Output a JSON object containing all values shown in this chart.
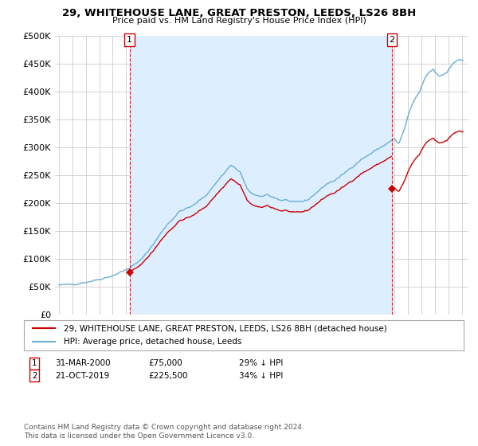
{
  "title": "29, WHITEHOUSE LANE, GREAT PRESTON, LEEDS, LS26 8BH",
  "subtitle": "Price paid vs. HM Land Registry's House Price Index (HPI)",
  "hpi_color": "#6baed6",
  "price_color": "#cc0000",
  "vline_color": "#cc0000",
  "shade_color": "#ddeeff",
  "background_color": "#ffffff",
  "grid_color": "#cccccc",
  "sale1": {
    "date_num": 2000.25,
    "price": 75000,
    "label": "1",
    "date_str": "31-MAR-2000",
    "pct": "29% ↓ HPI"
  },
  "sale2": {
    "date_num": 2019.81,
    "price": 225500,
    "label": "2",
    "date_str": "21-OCT-2019",
    "pct": "34% ↓ HPI"
  },
  "legend_entry1": "29, WHITEHOUSE LANE, GREAT PRESTON, LEEDS, LS26 8BH (detached house)",
  "legend_entry2": "HPI: Average price, detached house, Leeds",
  "footnote1": "Contains HM Land Registry data © Crown copyright and database right 2024.",
  "footnote2": "This data is licensed under the Open Government Licence v3.0.",
  "ylim": [
    0,
    500000
  ],
  "yticks": [
    0,
    50000,
    100000,
    150000,
    200000,
    250000,
    300000,
    350000,
    400000,
    450000,
    500000
  ],
  "ytick_labels": [
    "£0",
    "£50K",
    "£100K",
    "£150K",
    "£200K",
    "£250K",
    "£300K",
    "£350K",
    "£400K",
    "£450K",
    "£500K"
  ],
  "xlim_start": 1994.7,
  "xlim_end": 2025.5,
  "hpi_keypoints": [
    [
      1995.0,
      52000
    ],
    [
      1996.0,
      54000
    ],
    [
      1997.0,
      58000
    ],
    [
      1998.0,
      63000
    ],
    [
      1999.0,
      70000
    ],
    [
      2000.0,
      80000
    ],
    [
      2001.0,
      95000
    ],
    [
      2002.0,
      125000
    ],
    [
      2003.0,
      160000
    ],
    [
      2004.0,
      185000
    ],
    [
      2005.0,
      195000
    ],
    [
      2006.0,
      215000
    ],
    [
      2007.0,
      245000
    ],
    [
      2007.8,
      268000
    ],
    [
      2008.5,
      255000
    ],
    [
      2009.0,
      225000
    ],
    [
      2009.5,
      215000
    ],
    [
      2010.0,
      210000
    ],
    [
      2010.5,
      215000
    ],
    [
      2011.0,
      210000
    ],
    [
      2011.5,
      205000
    ],
    [
      2012.0,
      205000
    ],
    [
      2012.5,
      200000
    ],
    [
      2013.0,
      202000
    ],
    [
      2013.5,
      205000
    ],
    [
      2014.0,
      215000
    ],
    [
      2014.5,
      225000
    ],
    [
      2015.0,
      235000
    ],
    [
      2015.5,
      240000
    ],
    [
      2016.0,
      248000
    ],
    [
      2016.5,
      258000
    ],
    [
      2017.0,
      268000
    ],
    [
      2017.5,
      278000
    ],
    [
      2018.0,
      285000
    ],
    [
      2018.5,
      293000
    ],
    [
      2019.0,
      300000
    ],
    [
      2019.5,
      308000
    ],
    [
      2020.0,
      315000
    ],
    [
      2020.3,
      305000
    ],
    [
      2020.7,
      330000
    ],
    [
      2021.0,
      355000
    ],
    [
      2021.3,
      375000
    ],
    [
      2021.6,
      390000
    ],
    [
      2021.9,
      400000
    ],
    [
      2022.0,
      410000
    ],
    [
      2022.3,
      425000
    ],
    [
      2022.6,
      435000
    ],
    [
      2022.9,
      440000
    ],
    [
      2023.0,
      435000
    ],
    [
      2023.3,
      428000
    ],
    [
      2023.6,
      430000
    ],
    [
      2023.9,
      435000
    ],
    [
      2024.0,
      440000
    ],
    [
      2024.3,
      448000
    ],
    [
      2024.6,
      455000
    ],
    [
      2024.9,
      458000
    ],
    [
      2025.0,
      455000
    ]
  ]
}
